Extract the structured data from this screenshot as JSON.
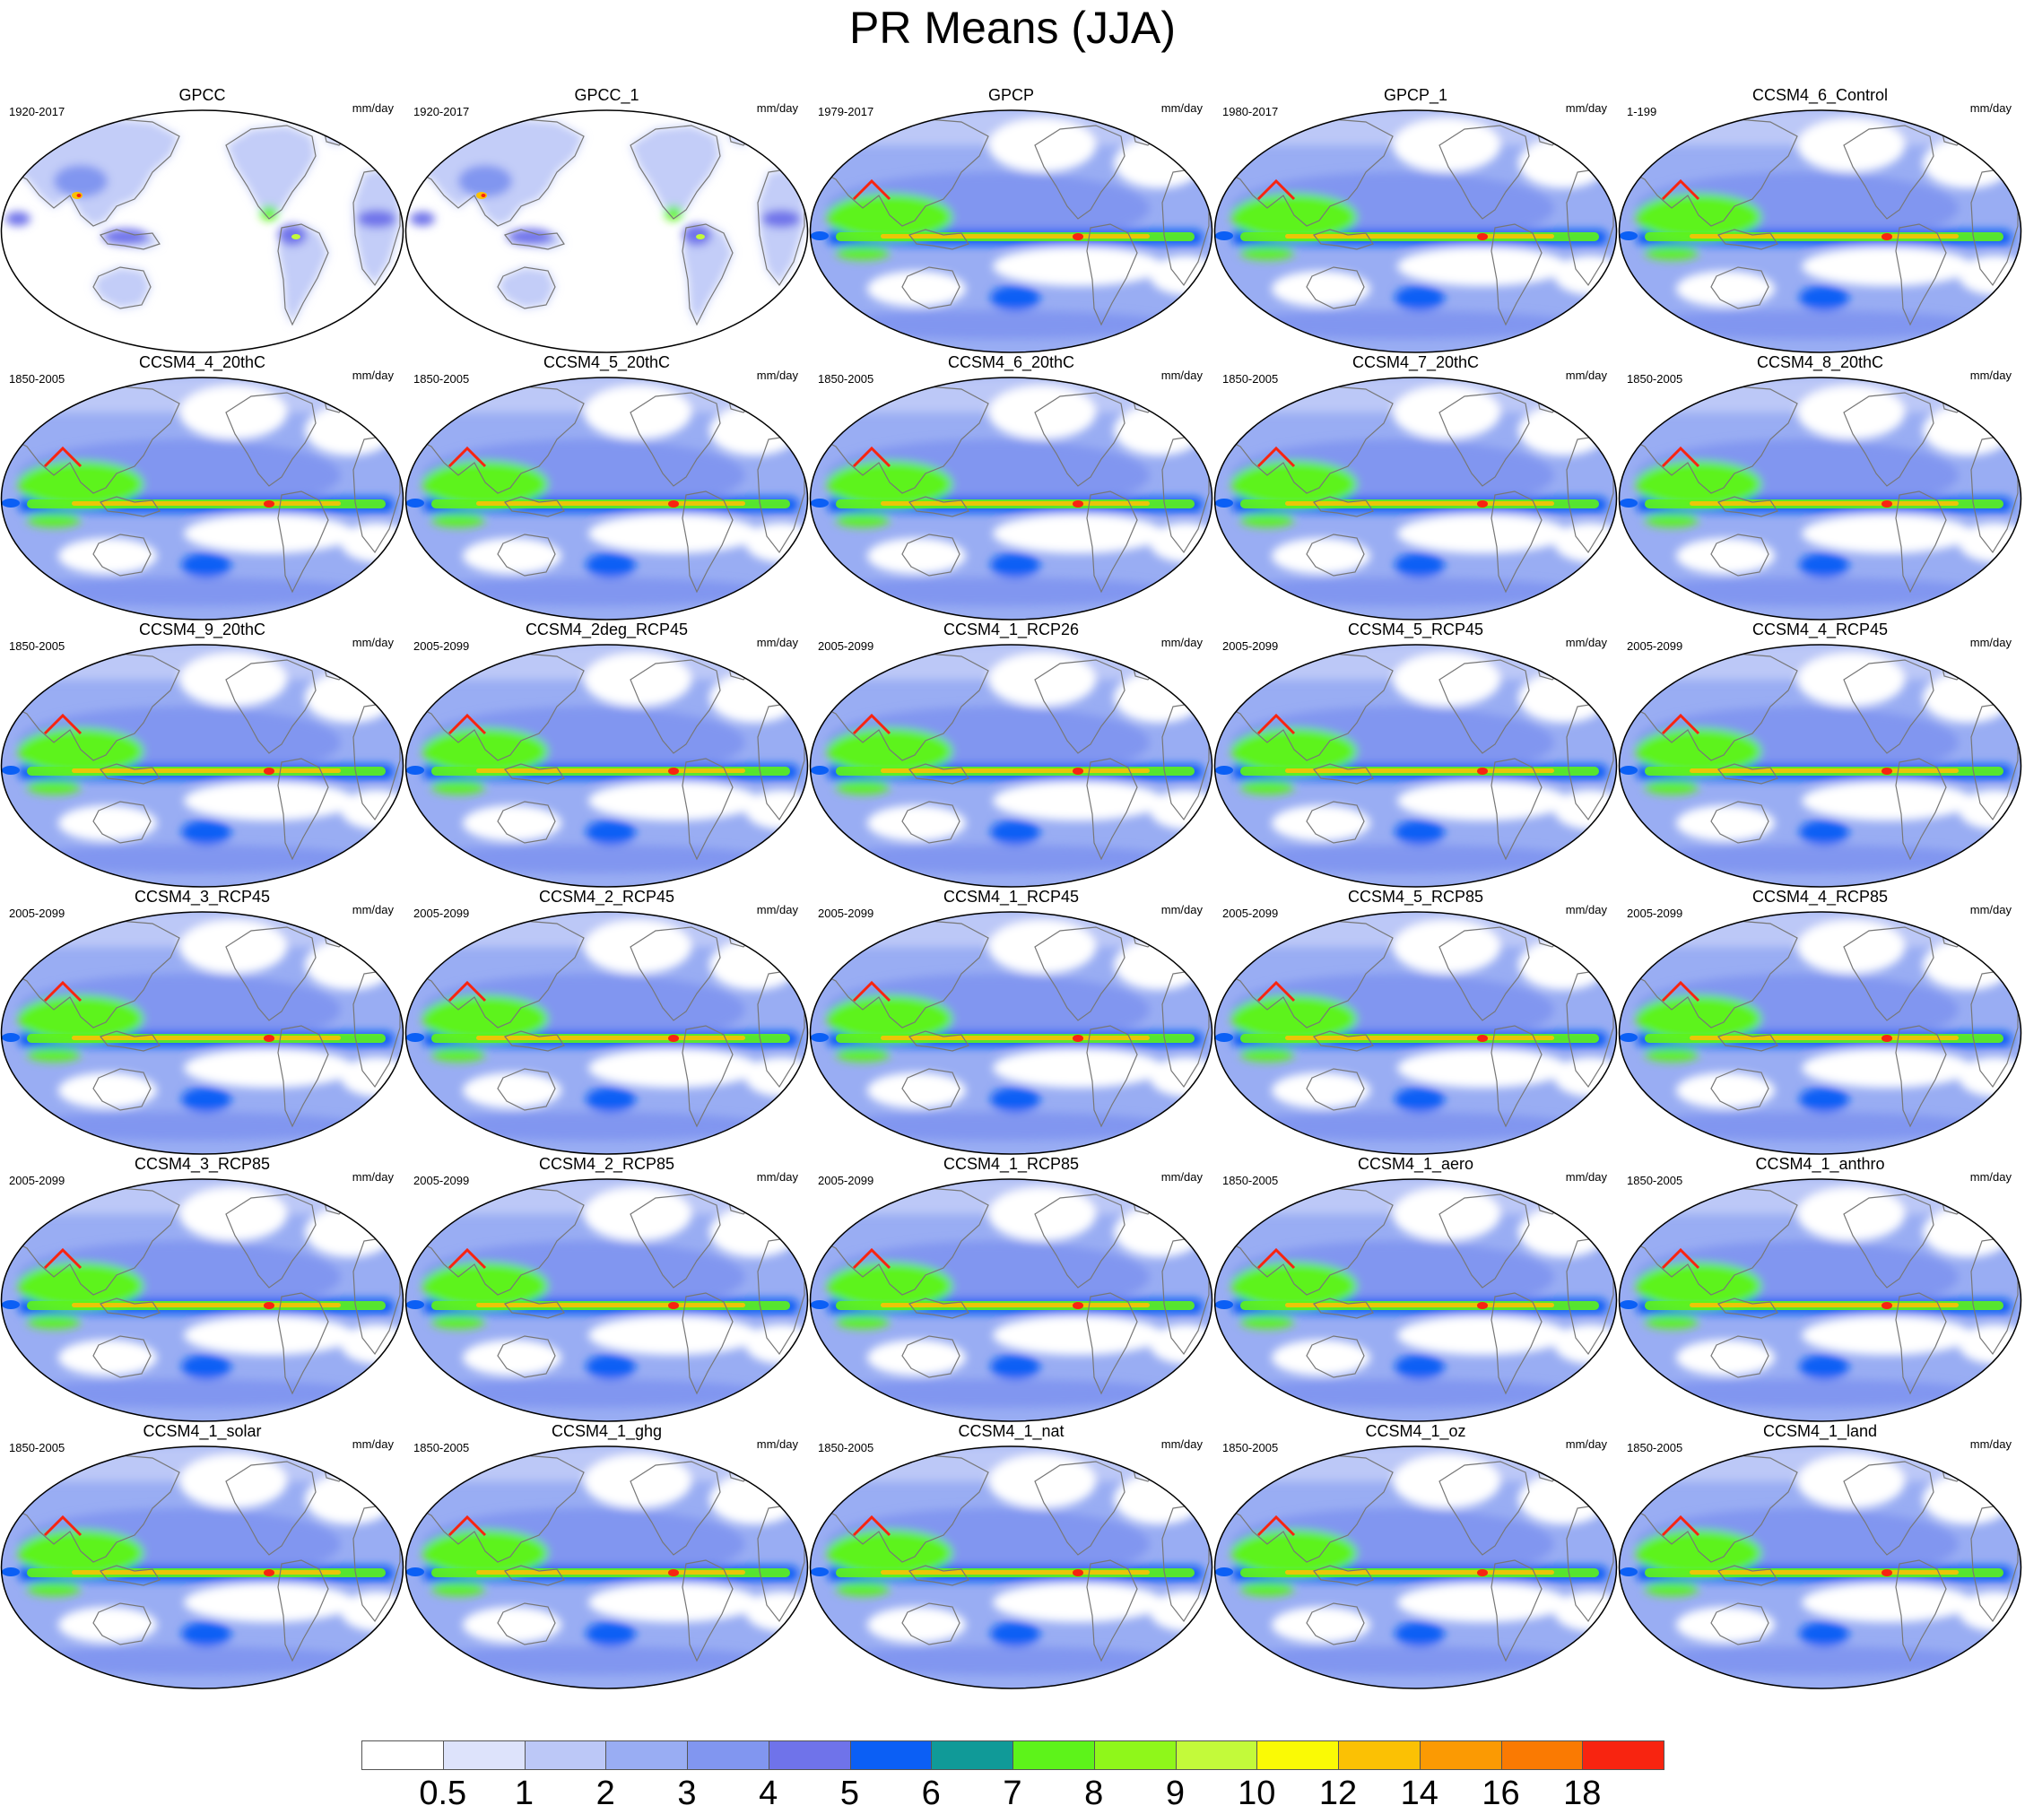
{
  "title": "PR Means (JJA)",
  "units": "mm/day",
  "panels": [
    {
      "name": "GPCC",
      "period": "1920-2017",
      "kind": "obs_land"
    },
    {
      "name": "GPCC_1",
      "period": "1920-2017",
      "kind": "obs_land"
    },
    {
      "name": "GPCP",
      "period": "1979-2017",
      "kind": "obs_global"
    },
    {
      "name": "GPCP_1",
      "period": "1980-2017",
      "kind": "obs_global"
    },
    {
      "name": "CCSM4_6_Control",
      "period": "1-199",
      "kind": "model"
    },
    {
      "name": "CCSM4_4_20thC",
      "period": "1850-2005",
      "kind": "model"
    },
    {
      "name": "CCSM4_5_20thC",
      "period": "1850-2005",
      "kind": "model"
    },
    {
      "name": "CCSM4_6_20thC",
      "period": "1850-2005",
      "kind": "model"
    },
    {
      "name": "CCSM4_7_20thC",
      "period": "1850-2005",
      "kind": "model"
    },
    {
      "name": "CCSM4_8_20thC",
      "period": "1850-2005",
      "kind": "model"
    },
    {
      "name": "CCSM4_9_20thC",
      "period": "1850-2005",
      "kind": "model"
    },
    {
      "name": "CCSM4_2deg_RCP45",
      "period": "2005-2099",
      "kind": "model"
    },
    {
      "name": "CCSM4_1_RCP26",
      "period": "2005-2099",
      "kind": "model"
    },
    {
      "name": "CCSM4_5_RCP45",
      "period": "2005-2099",
      "kind": "model"
    },
    {
      "name": "CCSM4_4_RCP45",
      "period": "2005-2099",
      "kind": "model"
    },
    {
      "name": "CCSM4_3_RCP45",
      "period": "2005-2099",
      "kind": "model"
    },
    {
      "name": "CCSM4_2_RCP45",
      "period": "2005-2099",
      "kind": "model"
    },
    {
      "name": "CCSM4_1_RCP45",
      "period": "2005-2099",
      "kind": "model"
    },
    {
      "name": "CCSM4_5_RCP85",
      "period": "2005-2099",
      "kind": "model"
    },
    {
      "name": "CCSM4_4_RCP85",
      "period": "2005-2099",
      "kind": "model"
    },
    {
      "name": "CCSM4_3_RCP85",
      "period": "2005-2099",
      "kind": "model"
    },
    {
      "name": "CCSM4_2_RCP85",
      "period": "2005-2099",
      "kind": "model"
    },
    {
      "name": "CCSM4_1_RCP85",
      "period": "2005-2099",
      "kind": "model"
    },
    {
      "name": "CCSM4_1_aero",
      "period": "1850-2005",
      "kind": "model"
    },
    {
      "name": "CCSM4_1_anthro",
      "period": "1850-2005",
      "kind": "model"
    },
    {
      "name": "CCSM4_1_solar",
      "period": "1850-2005",
      "kind": "model"
    },
    {
      "name": "CCSM4_1_ghg",
      "period": "1850-2005",
      "kind": "model"
    },
    {
      "name": "CCSM4_1_nat",
      "period": "1850-2005",
      "kind": "model"
    },
    {
      "name": "CCSM4_1_oz",
      "period": "1850-2005",
      "kind": "model"
    },
    {
      "name": "CCSM4_1_land",
      "period": "1850-2005",
      "kind": "model"
    }
  ],
  "colorbar": {
    "labels": [
      "0.5",
      "1",
      "2",
      "3",
      "4",
      "5",
      "6",
      "7",
      "8",
      "9",
      "10",
      "12",
      "14",
      "16",
      "18"
    ],
    "colors": [
      "#ffffff",
      "#dde3fb",
      "#bcc8f7",
      "#99adf3",
      "#8196f0",
      "#6f73ea",
      "#0b5ff5",
      "#109a98",
      "#5df31a",
      "#8ff71a",
      "#c3fa3a",
      "#fafa05",
      "#fbc104",
      "#fb9a03",
      "#fa7a02",
      "#f82410"
    ]
  },
  "colors": {
    "land_outline": "#777777",
    "map_border": "#000000"
  }
}
